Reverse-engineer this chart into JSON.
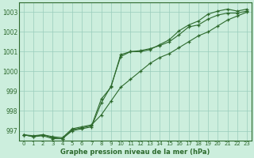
{
  "title": "Graphe pression niveau de la mer (hPa)",
  "bg_color": "#cceedd",
  "grid_color": "#99ccbb",
  "line_color": "#2d6a2d",
  "xlim": [
    -0.5,
    23.5
  ],
  "ylim": [
    996.5,
    1003.5
  ],
  "yticks": [
    997,
    998,
    999,
    1000,
    1001,
    1002,
    1003
  ],
  "xticks": [
    0,
    1,
    2,
    3,
    4,
    5,
    6,
    7,
    8,
    9,
    10,
    11,
    12,
    13,
    14,
    15,
    16,
    17,
    18,
    19,
    20,
    21,
    22,
    23
  ],
  "line1": [
    996.8,
    996.7,
    996.8,
    996.7,
    996.65,
    997.1,
    997.2,
    997.3,
    997.8,
    998.5,
    999.2,
    999.6,
    1000.0,
    1000.4,
    1000.7,
    1000.9,
    1001.2,
    1001.5,
    1001.8,
    1002.0,
    1002.3,
    1002.6,
    1002.8,
    1003.0
  ],
  "line2": [
    996.8,
    996.75,
    996.8,
    996.65,
    996.6,
    997.05,
    997.15,
    997.25,
    998.6,
    999.2,
    1000.85,
    1001.0,
    1001.05,
    1001.15,
    1001.3,
    1001.5,
    1001.85,
    1002.25,
    1002.35,
    1002.65,
    1002.85,
    1002.95,
    1002.95,
    1003.05
  ],
  "line3": [
    996.8,
    996.7,
    996.75,
    996.6,
    996.6,
    997.0,
    997.1,
    997.2,
    998.4,
    999.25,
    1000.75,
    1001.0,
    1001.0,
    1001.1,
    1001.35,
    1001.6,
    1002.05,
    1002.35,
    1002.55,
    1002.9,
    1003.05,
    1003.15,
    1003.05,
    1003.15
  ]
}
